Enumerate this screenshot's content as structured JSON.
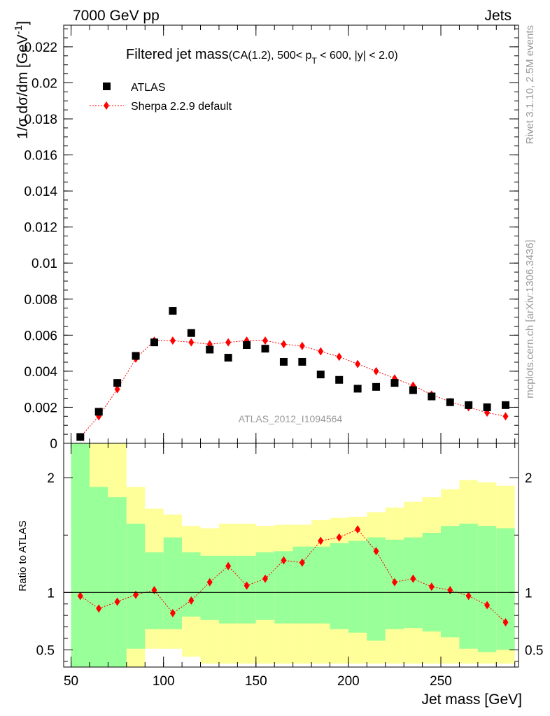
{
  "header": {
    "energy_label": "7000 GeV pp",
    "process_label": "Jets",
    "side_rivet": "Rivet 3.1.10,  2.5M events",
    "side_source": "mcplots.cern.ch [arXiv:1306.3436]",
    "watermark": "ATLAS_2012_I1094564"
  },
  "main_title": {
    "main": "Filtered jet mass",
    "sub_a": "(CA(1.2), 500< p",
    "sub_sub": "T",
    "sub_b": " < 600, |y| < 2.0)"
  },
  "colors": {
    "data": "#000000",
    "mc": "#ff0000",
    "band_stat": "#99ff99",
    "band_total": "#ffff99"
  },
  "chart_data": [
    {
      "type": "scatter",
      "panel": "main",
      "ylabel_main": "1/σ dσ/dm [GeV",
      "ylabel_sup": "-1",
      "ylabel_close": "]",
      "xlim": [
        46,
        292
      ],
      "ylim": [
        0,
        0.0232
      ],
      "yticks": [
        0,
        0.002,
        0.004,
        0.006,
        0.008,
        0.01,
        0.012,
        0.014,
        0.016,
        0.018,
        0.02,
        0.022
      ],
      "ytick_labels": [
        "0",
        "0.002",
        "0.004",
        "0.006",
        "0.008",
        "0.01",
        "0.012",
        "0.014",
        "0.016",
        "0.018",
        "0.02",
        "0.022"
      ],
      "legend": [
        "ATLAS",
        "Sherpa 2.2.9 default"
      ],
      "x": [
        55,
        65,
        75,
        85,
        95,
        105,
        115,
        125,
        135,
        145,
        155,
        165,
        175,
        185,
        195,
        205,
        215,
        225,
        235,
        245,
        255,
        265,
        275,
        285
      ],
      "series": [
        {
          "name": "ATLAS",
          "values": [
            0.00035,
            0.00175,
            0.00335,
            0.00485,
            0.0056,
            0.00735,
            0.00612,
            0.0052,
            0.00475,
            0.00545,
            0.00525,
            0.00452,
            0.00452,
            0.00382,
            0.00352,
            0.00303,
            0.00313,
            0.00335,
            0.00295,
            0.0026,
            0.00228,
            0.00212,
            0.002,
            0.00212
          ]
        },
        {
          "name": "Sherpa 2.2.9 default",
          "values": [
            0.00035,
            0.0015,
            0.003,
            0.0047,
            0.0057,
            0.0057,
            0.0056,
            0.0055,
            0.0056,
            0.0057,
            0.0057,
            0.0055,
            0.0054,
            0.0051,
            0.0048,
            0.0044,
            0.004,
            0.0036,
            0.0032,
            0.0027,
            0.0023,
            0.002,
            0.0017,
            0.0015
          ]
        }
      ]
    },
    {
      "type": "scatter",
      "panel": "ratio",
      "ylabel": "Ratio to ATLAS",
      "xlabel": "Jet mass [GeV]",
      "xlim": [
        46,
        292
      ],
      "ylim": [
        0.35,
        2.3
      ],
      "xticks": [
        50,
        100,
        150,
        200,
        250
      ],
      "xtick_labels": [
        "50",
        "100",
        "150",
        "200",
        "250"
      ],
      "yticks": [
        0.5,
        1,
        2
      ],
      "ytick_labels": [
        "0.5",
        "1",
        "2"
      ],
      "bin_edges": [
        50,
        60,
        70,
        80,
        90,
        100,
        110,
        120,
        130,
        140,
        150,
        160,
        170,
        180,
        190,
        200,
        210,
        220,
        230,
        240,
        250,
        260,
        270,
        280,
        290
      ],
      "band_total": {
        "lo": [
          0.35,
          0.35,
          0.35,
          0.35,
          0.51,
          0.51,
          0.44,
          0.38,
          0.38,
          0.38,
          0.38,
          0.38,
          0.38,
          0.38,
          0.38,
          0.38,
          0.38,
          0.38,
          0.38,
          0.38,
          0.38,
          0.38,
          0.38,
          0.38
        ],
        "hi": [
          2.3,
          2.3,
          2.3,
          1.92,
          1.73,
          1.68,
          1.58,
          1.56,
          1.6,
          1.6,
          1.58,
          1.59,
          1.59,
          1.63,
          1.65,
          1.66,
          1.7,
          1.74,
          1.79,
          1.83,
          1.9,
          1.98,
          1.96,
          1.93
        ]
      },
      "band_stat": {
        "lo": [
          0.35,
          0.35,
          0.35,
          0.51,
          0.68,
          0.68,
          0.79,
          0.76,
          0.73,
          0.73,
          0.76,
          0.73,
          0.73,
          0.73,
          0.68,
          0.65,
          0.58,
          0.68,
          0.69,
          0.66,
          0.61,
          0.51,
          0.48,
          0.5
        ],
        "hi": [
          2.3,
          1.92,
          1.83,
          1.6,
          1.35,
          1.48,
          1.35,
          1.32,
          1.32,
          1.32,
          1.35,
          1.36,
          1.4,
          1.4,
          1.43,
          1.45,
          1.48,
          1.46,
          1.48,
          1.52,
          1.58,
          1.6,
          1.58,
          1.56
        ]
      },
      "x": [
        55,
        65,
        75,
        85,
        95,
        105,
        115,
        125,
        135,
        145,
        155,
        165,
        175,
        185,
        195,
        205,
        215,
        225,
        235,
        245,
        255,
        265,
        275,
        285
      ],
      "series": [
        {
          "name": "Sherpa 2.2.9 default",
          "values": [
            0.97,
            0.86,
            0.92,
            0.98,
            1.02,
            0.82,
            0.93,
            1.09,
            1.23,
            1.06,
            1.12,
            1.28,
            1.26,
            1.45,
            1.48,
            1.55,
            1.36,
            1.09,
            1.12,
            1.05,
            1.02,
            0.97,
            0.89,
            0.74
          ]
        }
      ]
    }
  ]
}
